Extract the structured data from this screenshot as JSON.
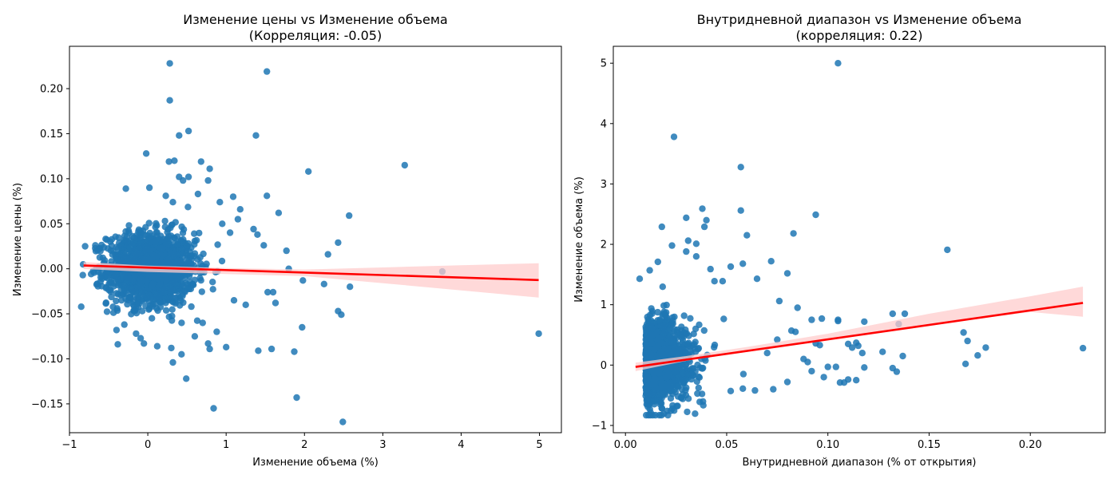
{
  "chart_data": [
    {
      "type": "scatter",
      "title": "Изменение цены vs Изменение объема",
      "subtitle": "(Корреляция: -0.05)",
      "xlabel": "Изменение объема (%)",
      "ylabel": "Изменение цены (%)",
      "xlim": [
        -1.0,
        5.28
      ],
      "ylim": [
        -0.182,
        0.247
      ],
      "xticks": [
        -1,
        0,
        1,
        2,
        3,
        4,
        5
      ],
      "xtick_labels": [
        "−1",
        "0",
        "1",
        "2",
        "3",
        "4",
        "5"
      ],
      "yticks": [
        -0.15,
        -0.1,
        -0.05,
        0.0,
        0.05,
        0.1,
        0.15,
        0.2
      ],
      "ytick_labels": [
        "−0.15",
        "−0.10",
        "−0.05",
        "0.00",
        "0.05",
        "0.10",
        "0.15",
        "0.20"
      ],
      "grid": false,
      "point_color": "#1f77b4",
      "line_color": "#ff0000",
      "band_color": "#ffcccc",
      "cluster": {
        "x_center": 0.05,
        "x_spread": 0.28,
        "y_center": 0.0,
        "y_spread": 0.02,
        "count": 1500
      },
      "points": [
        [
          0.28,
          0.228
        ],
        [
          1.52,
          0.219
        ],
        [
          0.28,
          0.187
        ],
        [
          0.52,
          0.153
        ],
        [
          0.4,
          0.148
        ],
        [
          1.38,
          0.148
        ],
        [
          -0.02,
          0.128
        ],
        [
          0.27,
          0.119
        ],
        [
          0.34,
          0.12
        ],
        [
          0.68,
          0.119
        ],
        [
          0.79,
          0.111
        ],
        [
          0.4,
          0.102
        ],
        [
          0.52,
          0.102
        ],
        [
          3.28,
          0.115
        ],
        [
          2.05,
          0.108
        ],
        [
          0.45,
          0.098
        ],
        [
          0.77,
          0.098
        ],
        [
          -0.28,
          0.089
        ],
        [
          0.02,
          0.09
        ],
        [
          0.64,
          0.083
        ],
        [
          1.52,
          0.081
        ],
        [
          1.09,
          0.08
        ],
        [
          0.23,
          0.081
        ],
        [
          0.32,
          0.074
        ],
        [
          0.92,
          0.074
        ],
        [
          1.18,
          0.066
        ],
        [
          1.67,
          0.062
        ],
        [
          2.57,
          0.059
        ],
        [
          1.35,
          0.044
        ],
        [
          1.4,
          0.038
        ],
        [
          2.43,
          0.029
        ],
        [
          1.48,
          0.026
        ],
        [
          2.3,
          0.016
        ],
        [
          1.77,
          0.02
        ],
        [
          1.8,
          0.0
        ],
        [
          3.76,
          -0.003
        ],
        [
          1.98,
          -0.013
        ],
        [
          2.25,
          -0.017
        ],
        [
          2.58,
          -0.02
        ],
        [
          1.53,
          -0.026
        ],
        [
          1.6,
          -0.026
        ],
        [
          1.63,
          -0.038
        ],
        [
          2.43,
          -0.047
        ],
        [
          2.47,
          -0.051
        ],
        [
          1.97,
          -0.065
        ],
        [
          4.99,
          -0.072
        ],
        [
          1.41,
          -0.091
        ],
        [
          1.58,
          -0.089
        ],
        [
          1.87,
          -0.092
        ],
        [
          0.77,
          -0.083
        ],
        [
          0.79,
          -0.089
        ],
        [
          1.0,
          -0.087
        ],
        [
          0.32,
          -0.104
        ],
        [
          0.49,
          -0.122
        ],
        [
          0.84,
          -0.155
        ],
        [
          1.9,
          -0.143
        ],
        [
          2.49,
          -0.17
        ],
        [
          0.43,
          -0.095
        ],
        [
          -0.05,
          -0.083
        ],
        [
          0.12,
          -0.086
        ],
        [
          0.3,
          -0.088
        ],
        [
          -0.83,
          -0.007
        ],
        [
          -0.8,
          0.025
        ],
        [
          -0.67,
          0.026
        ],
        [
          -0.6,
          -0.005
        ],
        [
          -0.4,
          -0.068
        ],
        [
          -0.3,
          -0.062
        ],
        [
          -0.15,
          -0.072
        ],
        [
          1.1,
          -0.035
        ],
        [
          1.25,
          -0.04
        ],
        [
          1.05,
          0.04
        ],
        [
          0.95,
          0.05
        ],
        [
          1.15,
          0.055
        ],
        [
          0.88,
          -0.07
        ],
        [
          0.6,
          -0.075
        ],
        [
          0.7,
          -0.06
        ]
      ],
      "regression": {
        "x": [
          -0.82,
          4.99
        ],
        "y": [
          0.0036,
          -0.0125
        ]
      },
      "band": {
        "x": [
          -0.82,
          0.0,
          1.0,
          2.0,
          3.0,
          4.0,
          4.99
        ],
        "upper": [
          0.0075,
          0.0035,
          0.0008,
          -0.0008,
          0.0015,
          0.004,
          0.0062
        ],
        "lower": [
          -0.0003,
          -0.0035,
          -0.0058,
          -0.0082,
          -0.016,
          -0.024,
          -0.032
        ]
      }
    },
    {
      "type": "scatter",
      "title": "Внутридневной диапазон vs Изменение объема",
      "subtitle": "(корреляция: 0.22)",
      "xlabel": "Внутридневной диапазон (% от открытия)",
      "ylabel": "Изменение объема (%)",
      "xlim": [
        -0.006,
        0.237
      ],
      "ylim": [
        -1.12,
        5.28
      ],
      "xticks": [
        0.0,
        0.05,
        0.1,
        0.15,
        0.2
      ],
      "xtick_labels": [
        "0.00",
        "0.05",
        "0.10",
        "0.15",
        "0.20"
      ],
      "yticks": [
        -1,
        0,
        1,
        2,
        3,
        4,
        5
      ],
      "ytick_labels": [
        "−1",
        "0",
        "1",
        "2",
        "3",
        "4",
        "5"
      ],
      "grid": false,
      "point_color": "#1f77b4",
      "line_color": "#ff0000",
      "band_color": "#ffcccc",
      "cluster": {
        "x_center": 0.022,
        "x_spread": 0.008,
        "y_center": 0.05,
        "y_spread": 0.32,
        "count": 1500
      },
      "points": [
        [
          0.105,
          5.0
        ],
        [
          0.024,
          3.78
        ],
        [
          0.057,
          3.28
        ],
        [
          0.057,
          2.56
        ],
        [
          0.094,
          2.49
        ],
        [
          0.03,
          2.44
        ],
        [
          0.038,
          2.59
        ],
        [
          0.04,
          2.4
        ],
        [
          0.039,
          2.29
        ],
        [
          0.018,
          2.29
        ],
        [
          0.06,
          2.15
        ],
        [
          0.083,
          2.18
        ],
        [
          0.031,
          2.06
        ],
        [
          0.035,
          2.01
        ],
        [
          0.023,
          1.98
        ],
        [
          0.159,
          1.91
        ],
        [
          0.03,
          1.88
        ],
        [
          0.035,
          1.8
        ],
        [
          0.058,
          1.68
        ],
        [
          0.052,
          1.63
        ],
        [
          0.072,
          1.72
        ],
        [
          0.016,
          1.71
        ],
        [
          0.08,
          1.52
        ],
        [
          0.065,
          1.43
        ],
        [
          0.007,
          1.43
        ],
        [
          0.012,
          1.57
        ],
        [
          0.042,
          1.59
        ],
        [
          0.138,
          0.85
        ],
        [
          0.132,
          0.85
        ],
        [
          0.127,
          0.22
        ],
        [
          0.226,
          0.28
        ],
        [
          0.178,
          0.29
        ],
        [
          0.174,
          0.16
        ],
        [
          0.169,
          0.4
        ],
        [
          0.167,
          0.54
        ],
        [
          0.168,
          0.02
        ],
        [
          0.135,
          0.68
        ],
        [
          0.137,
          0.15
        ],
        [
          0.132,
          -0.05
        ],
        [
          0.134,
          -0.11
        ],
        [
          0.118,
          0.72
        ],
        [
          0.105,
          0.75
        ],
        [
          0.105,
          0.73
        ],
        [
          0.11,
          0.35
        ],
        [
          0.112,
          0.29
        ],
        [
          0.114,
          0.37
        ],
        [
          0.117,
          0.2
        ],
        [
          0.118,
          -0.04
        ],
        [
          0.104,
          -0.03
        ],
        [
          0.108,
          -0.29
        ],
        [
          0.11,
          -0.24
        ],
        [
          0.114,
          -0.25
        ],
        [
          0.115,
          0.32
        ],
        [
          0.106,
          -0.29
        ],
        [
          0.092,
          0.75
        ],
        [
          0.097,
          0.77
        ],
        [
          0.094,
          0.36
        ],
        [
          0.096,
          0.33
        ],
        [
          0.088,
          0.1
        ],
        [
          0.09,
          0.05
        ],
        [
          0.085,
          0.95
        ],
        [
          0.082,
          0.57
        ],
        [
          0.084,
          0.55
        ],
        [
          0.076,
          1.06
        ],
        [
          0.075,
          0.42
        ],
        [
          0.07,
          0.2
        ],
        [
          0.073,
          -0.4
        ],
        [
          0.064,
          -0.42
        ],
        [
          0.058,
          -0.39
        ],
        [
          0.052,
          -0.43
        ],
        [
          0.048,
          1.39
        ],
        [
          0.044,
          1.39
        ],
        [
          0.1,
          -0.03
        ],
        [
          0.098,
          -0.2
        ],
        [
          0.092,
          -0.1
        ],
        [
          0.08,
          -0.28
        ]
      ],
      "regression": {
        "x": [
          0.005,
          0.226
        ],
        "y": [
          -0.03,
          1.03
        ]
      },
      "band": {
        "x": [
          0.005,
          0.03,
          0.06,
          0.1,
          0.15,
          0.2,
          0.226
        ],
        "upper": [
          0.04,
          0.15,
          0.3,
          0.52,
          0.85,
          1.14,
          1.3
        ],
        "lower": [
          -0.1,
          0.07,
          0.22,
          0.42,
          0.66,
          0.88,
          0.8
        ]
      }
    }
  ]
}
